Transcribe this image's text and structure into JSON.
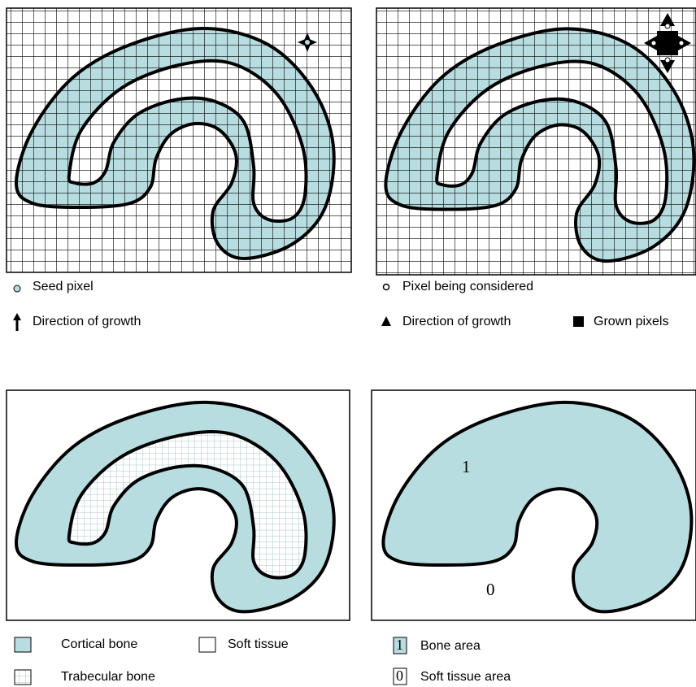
{
  "legend_growth": {
    "seed": "Seed pixel",
    "direction": "Direction of growth"
  },
  "legend_region": {
    "considered": "Pixel being considered",
    "direction": "Direction of growth",
    "grown": "Grown pixels"
  },
  "legend_tissue": {
    "cortical": "Cortical bone",
    "soft": "Soft tissue",
    "trabecular": "Trabecular bone"
  },
  "labels": {
    "bone": "1",
    "soft": "0"
  },
  "legend_binary": {
    "bone_key": "1",
    "bone": "Bone area",
    "soft_key": "0",
    "soft": "Soft tissue area"
  }
}
